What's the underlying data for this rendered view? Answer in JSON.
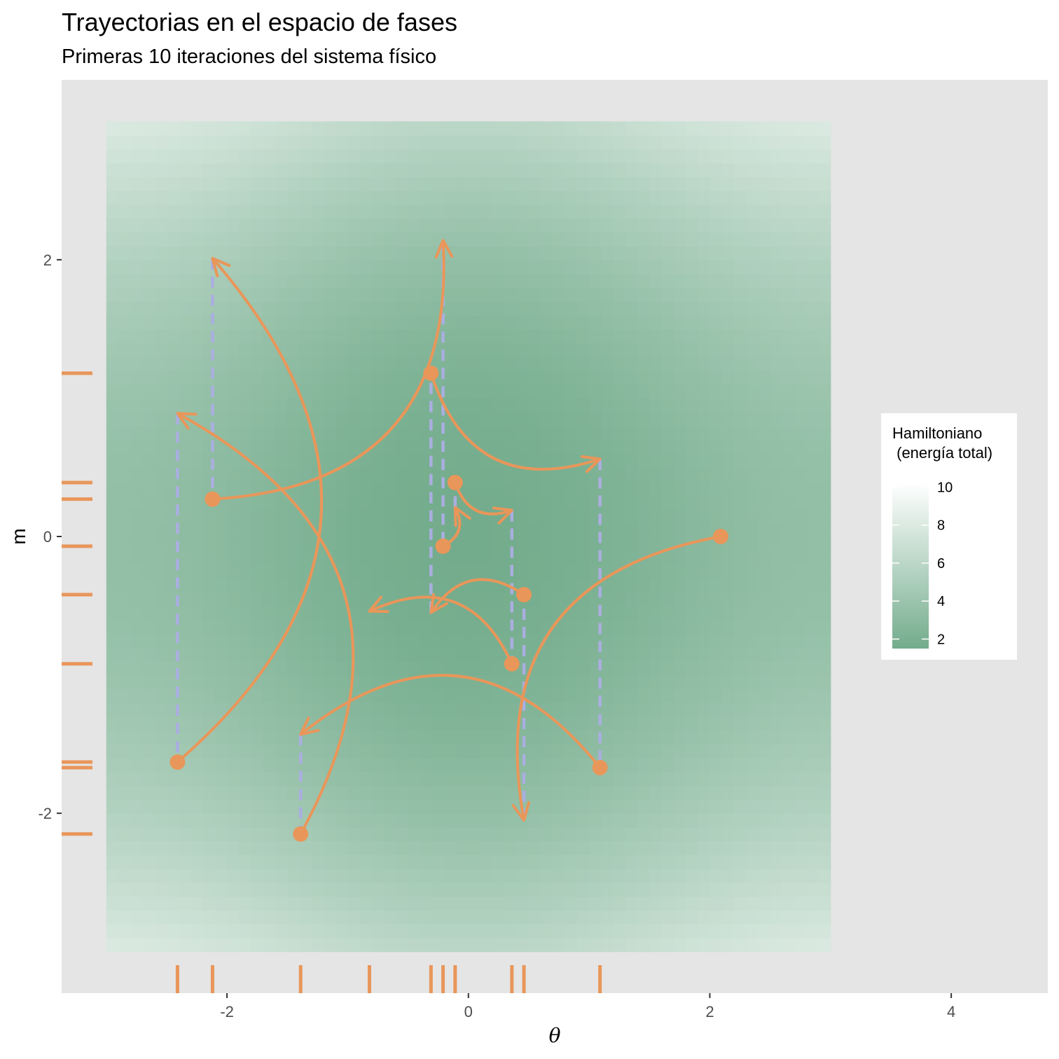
{
  "chart_data": {
    "type": "line",
    "title": "Trayectorias en el espacio de fases",
    "subtitle": "Primeras 10 iteraciones del sistema físico",
    "xlabel": "θ",
    "ylabel": "m",
    "xlim": [
      -3.37,
      4.8
    ],
    "ylim": [
      -3.3,
      3.3
    ],
    "x_ticks": [
      -2,
      0,
      2,
      4
    ],
    "y_ticks": [
      -2,
      0,
      2
    ],
    "x_tick_labels": [
      "-2",
      "0",
      "2",
      "4"
    ],
    "y_tick_labels": [
      "-2",
      "0",
      "2"
    ],
    "legend": {
      "title": "Hamiltoniano\n (energía total)",
      "position": "right",
      "breaks": [
        2,
        4,
        6,
        8,
        10
      ],
      "range": [
        1.5,
        10.2
      ],
      "color_low": "#73ac8c",
      "color_high": "#ffffff"
    },
    "hamiltonian_field": {
      "x_range": [
        -3.0,
        3.0
      ],
      "y_range": [
        -3.0,
        3.0
      ]
    },
    "points": [
      {
        "theta": 2.09,
        "m": 0.0
      },
      {
        "theta": 1.09,
        "m": -1.67
      },
      {
        "theta": -1.39,
        "m": -2.15
      },
      {
        "theta": -2.41,
        "m": -1.63
      },
      {
        "theta": -2.12,
        "m": 0.27
      },
      {
        "theta": -0.31,
        "m": 1.18
      },
      {
        "theta": -0.11,
        "m": 0.39
      },
      {
        "theta": 0.46,
        "m": -0.42
      },
      {
        "theta": 0.36,
        "m": -0.92
      },
      {
        "theta": -0.21,
        "m": -0.07
      }
    ],
    "arrows": [
      {
        "from": [
          2.09,
          0.0
        ],
        "to": [
          0.46,
          -2.05
        ]
      },
      {
        "from": [
          1.09,
          -1.67
        ],
        "to": [
          -1.39,
          -1.43
        ]
      },
      {
        "from": [
          -1.39,
          -2.15
        ],
        "to": [
          -2.41,
          0.89
        ]
      },
      {
        "from": [
          -2.41,
          -1.63
        ],
        "to": [
          -2.12,
          2.01
        ]
      },
      {
        "from": [
          -2.12,
          0.27
        ],
        "to": [
          -0.21,
          2.14
        ]
      },
      {
        "from": [
          -0.31,
          1.18
        ],
        "to": [
          1.09,
          0.56
        ]
      },
      {
        "from": [
          -0.11,
          0.39
        ],
        "to": [
          0.36,
          0.19
        ]
      },
      {
        "from": [
          0.46,
          -0.42
        ],
        "to": [
          -0.31,
          -0.55
        ]
      },
      {
        "from": [
          0.36,
          -0.92
        ],
        "to": [
          -0.82,
          -0.54
        ]
      },
      {
        "from": [
          -0.21,
          -0.07
        ],
        "to": [
          -0.11,
          0.21
        ]
      }
    ],
    "momentum_jumps": [
      {
        "theta": 0.46,
        "from": -2.05,
        "to": -0.42
      },
      {
        "theta": -1.39,
        "from": -1.43,
        "to": -2.15
      },
      {
        "theta": -2.41,
        "from": 0.89,
        "to": -1.63
      },
      {
        "theta": -2.12,
        "from": 2.01,
        "to": 0.27
      },
      {
        "theta": -0.21,
        "from": 2.14,
        "to": -0.07
      },
      {
        "theta": 1.09,
        "from": 0.56,
        "to": -1.67
      },
      {
        "theta": 0.36,
        "from": 0.19,
        "to": -0.92
      },
      {
        "theta": -0.31,
        "from": -0.55,
        "to": 1.18
      },
      {
        "theta": -0.11,
        "from": 0.21,
        "to": 0.39
      }
    ],
    "rug_x": [
      -2.41,
      -2.12,
      -1.39,
      -0.82,
      -0.31,
      -0.21,
      -0.11,
      0.36,
      0.46,
      1.09
    ],
    "rug_y": [
      1.18,
      0.39,
      0.27,
      -0.07,
      -0.42,
      -0.92,
      -1.63,
      -1.67,
      -2.15
    ],
    "colors": {
      "point": "#e9965a",
      "arrow": "#e9965a",
      "jump": "#aaaee0",
      "panel": "#e5e5e5"
    }
  }
}
